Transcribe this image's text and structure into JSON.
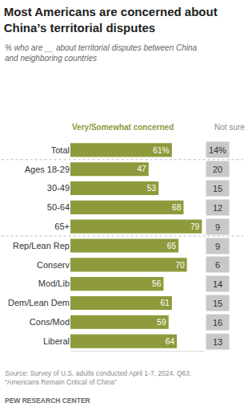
{
  "chart_data": {
    "type": "bar",
    "orientation": "horizontal",
    "title": [
      "Most Americans are concerned about",
      "China’s territorial disputes"
    ],
    "subtitle": [
      "% who are __ about territorial disputes between China",
      "and neighboring countries"
    ],
    "categories": [
      "Total",
      "Ages 18-29",
      "30-49",
      "50-64",
      "65+",
      "Rep/Lean Rep",
      "Conserv",
      "Mod/Lib",
      "Dem/Lean Dem",
      "Cons/Mod",
      "Liberal"
    ],
    "series": [
      {
        "name": "Very/Somewhat concerned",
        "color": "#8f9a3c",
        "values": [
          61,
          47,
          53,
          68,
          79,
          65,
          70,
          56,
          61,
          59,
          64
        ],
        "value_labels": [
          "61%",
          "47",
          "53",
          "68",
          "79",
          "65",
          "70",
          "56",
          "61",
          "59",
          "64"
        ]
      },
      {
        "name": "Not sure",
        "type": "text",
        "color": "#c8c8c8",
        "values": [
          14,
          20,
          15,
          12,
          9,
          9,
          6,
          14,
          15,
          16,
          13
        ],
        "value_labels": [
          "14%",
          "20",
          "15",
          "12",
          "9",
          "9",
          "6",
          "14",
          "15",
          "16",
          "13"
        ]
      }
    ],
    "xlim": [
      0,
      81
    ],
    "xticks": [],
    "grid": false,
    "data_labels": true,
    "tick_labels": "y",
    "source": [
      "Source: Survey of U.S. adults conducted April 1-7, 2024. Q63.",
      "“Americans Remain Critical of China”"
    ],
    "credit": "PEW RESEARCH CENTER"
  }
}
